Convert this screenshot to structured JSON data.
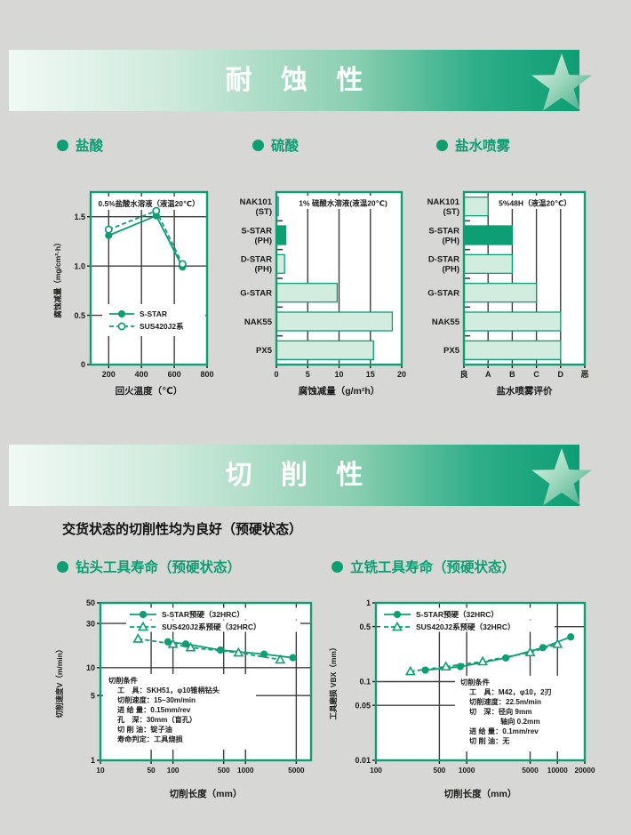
{
  "page": {
    "accent": "#0d9e74",
    "background": "#d7d8d6",
    "grid_color": "#3d3d3d",
    "bar_light_fill": "#d2ecdf"
  },
  "sections": [
    {
      "banner_title": "耐 蚀 性",
      "subsections": [
        {
          "label": "盐酸"
        },
        {
          "label": "硫酸"
        },
        {
          "label": "盐水喷雾"
        }
      ]
    },
    {
      "banner_title": "切 削 性",
      "intro": "交货状态的切削性均为良好（预硬状态）",
      "subsections": [
        {
          "label": "钻头工具寿命（预硬状态）"
        },
        {
          "label": "立铣工具寿命（预硬状态）"
        }
      ]
    }
  ],
  "chart_data": [
    {
      "id": "hcl",
      "type": "line",
      "title": "0.5%盐酸水溶液（液温20℃）",
      "xlabel": "回火温度（℃）",
      "ylabel": "腐蚀减量（mg/cm²·h）",
      "xlim": [
        90,
        800
      ],
      "ylim": [
        0,
        1.75
      ],
      "xticks": [
        200,
        400,
        600,
        800
      ],
      "yticks": [
        0,
        0.5,
        1.0,
        1.5
      ],
      "ytick_labels": [
        "0",
        "0.5",
        "1.0",
        "1.5"
      ],
      "xgrid": [
        200,
        400,
        600
      ],
      "ygrid": [
        0.5,
        1.0,
        1.5
      ],
      "series": [
        {
          "name": "S-STAR",
          "marker": "circle-filled",
          "line": "solid",
          "points": [
            [
              200,
              1.31
            ],
            [
              490,
              1.51
            ],
            [
              650,
              0.99
            ]
          ]
        },
        {
          "name": "SUS420J2系",
          "marker": "circle-open",
          "line": "dashed",
          "points": [
            [
              200,
              1.37
            ],
            [
              490,
              1.56
            ],
            [
              650,
              1.02
            ]
          ]
        }
      ]
    },
    {
      "id": "h2so4",
      "type": "bar",
      "title": "1% 硫酸水溶液(液温20℃)",
      "xlabel": "腐蚀减量（g/m²h）",
      "xlim": [
        0,
        20
      ],
      "xticks": [
        0,
        5,
        10,
        15,
        20
      ],
      "xtick_labels": [
        "0",
        "5",
        "10",
        "15",
        "20"
      ],
      "xgrid": [
        5,
        10,
        15
      ],
      "categories": [
        [
          "NAK101",
          "(ST)"
        ],
        [
          "S-STAR",
          "(PH)"
        ],
        [
          "D-STAR",
          "(PH)"
        ],
        [
          "G-STAR"
        ],
        [
          "NAK55"
        ],
        [
          "PX5"
        ]
      ],
      "values": [
        0.3,
        1.5,
        1.3,
        9.7,
        18.5,
        15.5
      ],
      "highlight_index": 1
    },
    {
      "id": "salt",
      "type": "bar",
      "title": "5%48H（液温20℃）",
      "xlabel": "盐水喷雾评价",
      "xlim": [
        0,
        5
      ],
      "xticks": [
        0,
        1,
        2,
        3,
        4,
        5
      ],
      "xtick_labels": [
        "良",
        "A",
        "B",
        "C",
        "D",
        "恶"
      ],
      "xgrid": [
        1,
        2,
        3,
        4
      ],
      "categories": [
        [
          "NAK101",
          "(ST)"
        ],
        [
          "S-STAR",
          "(PH)"
        ],
        [
          "D-STAR",
          "(PH)"
        ],
        [
          "G-STAR"
        ],
        [
          "NAK55"
        ],
        [
          "PX5"
        ]
      ],
      "values": [
        1,
        2,
        2,
        3,
        4,
        4
      ],
      "highlight_index": 1
    },
    {
      "id": "drill",
      "type": "loglog",
      "xlabel": "切削长度（mm）",
      "ylabel": "切削速度V（m/min）",
      "xlim": [
        10,
        8000
      ],
      "ylim": [
        1,
        50
      ],
      "xticks": [
        10,
        50,
        100,
        500,
        1000,
        5000
      ],
      "yticks": [
        1,
        5,
        10,
        30,
        50
      ],
      "xgrid": [
        50,
        100,
        500,
        1000,
        5000
      ],
      "ygrid": [
        5,
        10,
        30
      ],
      "conditions": [
        "切削条件",
        "工　具：SKH51，φ10锥柄钻头",
        "切削速度：15~30m/min",
        "进 给 量：0.15mm/rev",
        "孔　深：30mm（盲孔）",
        "切 削 油：锭子油",
        "寿命判定：工具烧损"
      ],
      "series": [
        {
          "name": "S-STAR预硬（32HRC）",
          "marker": "circle-filled",
          "line": "solid",
          "points": [
            [
              85,
              19
            ],
            [
              150,
              18
            ],
            [
              450,
              15.5
            ],
            [
              1800,
              14
            ],
            [
              4500,
              12.8
            ]
          ]
        },
        {
          "name": "SUS420J2系预硬（32HRC）",
          "marker": "triangle-open",
          "line": "dashed",
          "points": [
            [
              33,
              20.5
            ],
            [
              100,
              18
            ],
            [
              175,
              16.5
            ],
            [
              800,
              14.5
            ],
            [
              3000,
              12.2
            ]
          ]
        }
      ]
    },
    {
      "id": "mill",
      "type": "loglog",
      "xlabel": "切削长度（mm）",
      "ylabel": "工具磨损 VBX（mm）",
      "xlim": [
        100,
        20000
      ],
      "ylim": [
        0.01,
        1
      ],
      "xticks": [
        100,
        500,
        1000,
        5000,
        10000,
        20000
      ],
      "yticks": [
        0.01,
        0.05,
        0.1,
        0.5,
        1
      ],
      "ytick_labels": [
        "0.01",
        "0.05",
        "0.1",
        "0.5",
        "1"
      ],
      "xgrid": [
        500,
        1000,
        5000,
        10000
      ],
      "ygrid": [
        0.05,
        0.1,
        0.5
      ],
      "conditions": [
        "切削条件",
        "工　具：M42，φ10，2刃",
        "切削速度：22.5m/min",
        "切　深：径向 9mm",
        "　　　　 轴向 0.2mm",
        "进 给 量：0.1mm/rev",
        "切 削 油：无"
      ],
      "series": [
        {
          "name": "S-STAR预硬（32HRC）",
          "marker": "circle-filled",
          "line": "solid",
          "points": [
            [
              350,
              0.14
            ],
            [
              850,
              0.155
            ],
            [
              2700,
              0.2
            ],
            [
              6900,
              0.27
            ],
            [
              14000,
              0.37
            ]
          ]
        },
        {
          "name": "SUS420J2系预硬（32HRC）",
          "marker": "triangle-open",
          "line": "dashed",
          "points": [
            [
              240,
              0.135
            ],
            [
              590,
              0.155
            ],
            [
              1500,
              0.18
            ],
            [
              5000,
              0.235
            ],
            [
              10000,
              0.3
            ]
          ]
        }
      ]
    }
  ]
}
